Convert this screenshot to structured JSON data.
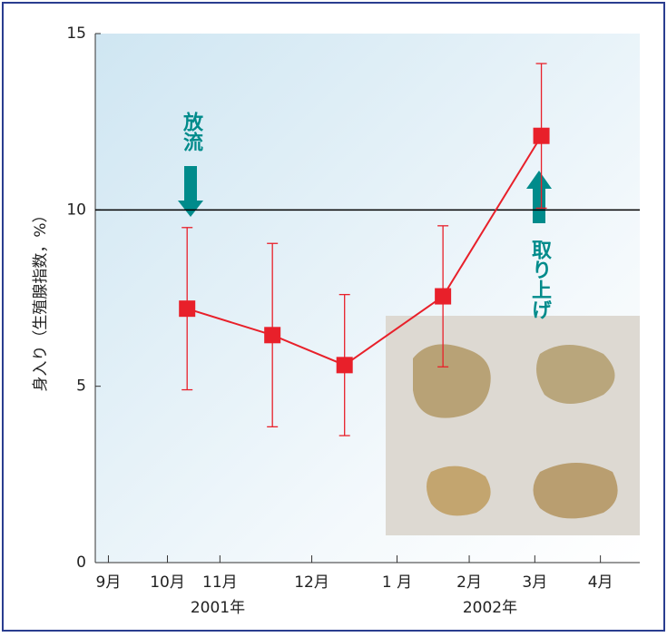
{
  "chart_data": {
    "type": "line",
    "y_label": "身入り（生殖腺指数，%）",
    "x": [
      10.1,
      11.4,
      12.5,
      14.0,
      15.5
    ],
    "series": [
      {
        "color": "#e8202a",
        "values": [
          7.2,
          6.45,
          5.6,
          7.55,
          12.1
        ],
        "errors": [
          2.3,
          2.6,
          2.0,
          2.0,
          2.05
        ]
      }
    ],
    "xlim": [
      8.7,
      17.0
    ],
    "xticks": [
      {
        "value": 8.9,
        "label": "9月"
      },
      {
        "value": 9.8,
        "label": "10月"
      },
      {
        "value": 10.6,
        "label": "11月"
      },
      {
        "value": 12.0,
        "label": "12月"
      },
      {
        "value": 13.3,
        "label": "1 月"
      },
      {
        "value": 14.4,
        "label": "2月"
      },
      {
        "value": 15.4,
        "label": "3月"
      },
      {
        "value": 16.4,
        "label": "4月"
      }
    ],
    "ylim": [
      0,
      15
    ],
    "yticks": [
      0,
      5,
      10,
      15
    ],
    "reference_line": 10,
    "years": [
      "2001年",
      "2002年"
    ],
    "annotations": [
      "放流",
      "取り上げ"
    ]
  }
}
